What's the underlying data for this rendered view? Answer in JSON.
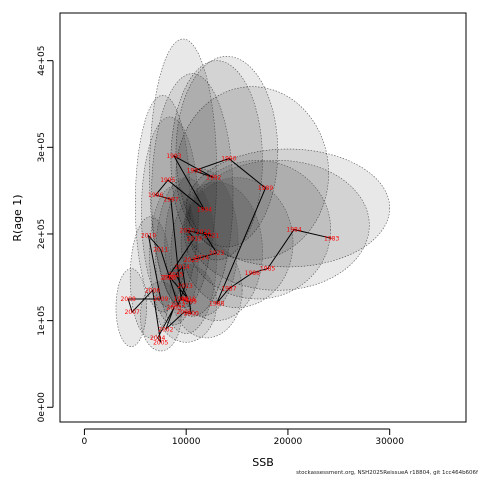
{
  "footer_text": "stockassessment.org, NSH2025ReissueA r18804, git 1cc464b606f",
  "chart_data": {
    "type": "scatter",
    "xlabel": "SSB",
    "ylabel": "R(age 1)",
    "xlim": [
      -2400,
      37500
    ],
    "ylim": [
      -17000,
      455000
    ],
    "x_ticks": [
      0,
      10000,
      20000,
      30000
    ],
    "y_ticks": [
      0,
      100000,
      200000,
      300000,
      400000
    ],
    "x_tick_labels": [
      "0",
      "10000",
      "20000",
      "30000"
    ],
    "y_tick_labels": [
      "0e+00",
      "1e+05",
      "2e+05",
      "3e+05",
      "4e+05"
    ],
    "grid": false,
    "colors": {
      "label": "#ff0000",
      "path": "#000000",
      "ellipse_fill": "#000000",
      "ellipse_stroke": "#555555"
    },
    "points": [
      {
        "label": "1983",
        "x": 24300,
        "y": 195000
      },
      {
        "label": "1984",
        "x": 20600,
        "y": 205000
      },
      {
        "label": "1985",
        "x": 18000,
        "y": 160000
      },
      {
        "label": "1986",
        "x": 16500,
        "y": 155000
      },
      {
        "label": "1987",
        "x": 14200,
        "y": 137000
      },
      {
        "label": "1988",
        "x": 13000,
        "y": 120000
      },
      {
        "label": "1989",
        "x": 17800,
        "y": 253000
      },
      {
        "label": "1990",
        "x": 14200,
        "y": 287000
      },
      {
        "label": "1991",
        "x": 10800,
        "y": 273000
      },
      {
        "label": "1992",
        "x": 12700,
        "y": 265000
      },
      {
        "label": "1993",
        "x": 8800,
        "y": 290000
      },
      {
        "label": "1994",
        "x": 11800,
        "y": 228000
      },
      {
        "label": "1995",
        "x": 8200,
        "y": 262000
      },
      {
        "label": "1996",
        "x": 7000,
        "y": 245000
      },
      {
        "label": "1997",
        "x": 8500,
        "y": 240000
      },
      {
        "label": "1998",
        "x": 9500,
        "y": 125000
      },
      {
        "label": "1999",
        "x": 10300,
        "y": 122000
      },
      {
        "label": "2000",
        "x": 10500,
        "y": 108000
      },
      {
        "label": "2001",
        "x": 9800,
        "y": 110000
      },
      {
        "label": "2002",
        "x": 8000,
        "y": 90000
      },
      {
        "label": "2003",
        "x": 8800,
        "y": 115000
      },
      {
        "label": "2004",
        "x": 7200,
        "y": 80000
      },
      {
        "label": "2005",
        "x": 7500,
        "y": 75000
      },
      {
        "label": "2006",
        "x": 6700,
        "y": 135000
      },
      {
        "label": "2007",
        "x": 4700,
        "y": 110000
      },
      {
        "label": "2008",
        "x": 4300,
        "y": 125000
      },
      {
        "label": "2009",
        "x": 7500,
        "y": 125000
      },
      {
        "label": "2010",
        "x": 6300,
        "y": 198000
      },
      {
        "label": "2011",
        "x": 7500,
        "y": 182000
      },
      {
        "label": "2012",
        "x": 9200,
        "y": 118000
      },
      {
        "label": "2013",
        "x": 9900,
        "y": 140000
      },
      {
        "label": "2014",
        "x": 9600,
        "y": 162000
      },
      {
        "label": "2015",
        "x": 9000,
        "y": 153000
      },
      {
        "label": "2016",
        "x": 10200,
        "y": 125000
      },
      {
        "label": "2017",
        "x": 8400,
        "y": 150000
      },
      {
        "label": "2018",
        "x": 8200,
        "y": 150000
      },
      {
        "label": "2019",
        "x": 10800,
        "y": 195000
      },
      {
        "label": "2020",
        "x": 10100,
        "y": 204000
      },
      {
        "label": "2021",
        "x": 12500,
        "y": 198000
      },
      {
        "label": "2022",
        "x": 11700,
        "y": 202000
      },
      {
        "label": "2023",
        "x": 13000,
        "y": 178000
      },
      {
        "label": "2024",
        "x": 11500,
        "y": 173000
      },
      {
        "label": "2025",
        "x": 10500,
        "y": 170000
      }
    ],
    "ellipses": [
      {
        "x": 20000,
        "y": 230000,
        "rx": 10000,
        "ry": 68000
      },
      {
        "x": 16500,
        "y": 270000,
        "rx": 7500,
        "ry": 100000
      },
      {
        "x": 14000,
        "y": 295000,
        "rx": 5000,
        "ry": 110000
      },
      {
        "x": 13000,
        "y": 285000,
        "rx": 4500,
        "ry": 115000
      },
      {
        "x": 9700,
        "y": 270000,
        "rx": 3300,
        "ry": 155000
      },
      {
        "x": 10600,
        "y": 245000,
        "rx": 4000,
        "ry": 140000
      },
      {
        "x": 7700,
        "y": 235000,
        "rx": 2700,
        "ry": 125000
      },
      {
        "x": 8400,
        "y": 225000,
        "rx": 2800,
        "ry": 110000
      },
      {
        "x": 19000,
        "y": 210000,
        "rx": 9000,
        "ry": 75000
      },
      {
        "x": 17000,
        "y": 205000,
        "rx": 7200,
        "ry": 80000
      },
      {
        "x": 15000,
        "y": 190000,
        "rx": 5500,
        "ry": 75000
      },
      {
        "x": 13000,
        "y": 180000,
        "rx": 4500,
        "ry": 80000
      },
      {
        "x": 11500,
        "y": 190000,
        "rx": 3600,
        "ry": 85000
      },
      {
        "x": 10000,
        "y": 175000,
        "rx": 3000,
        "ry": 90000
      },
      {
        "x": 8800,
        "y": 175000,
        "rx": 2400,
        "ry": 80000
      },
      {
        "x": 6500,
        "y": 150000,
        "rx": 2000,
        "ry": 70000
      },
      {
        "x": 4600,
        "y": 115000,
        "rx": 1500,
        "ry": 45000
      },
      {
        "x": 7500,
        "y": 105000,
        "rx": 2000,
        "ry": 40000
      },
      {
        "x": 10000,
        "y": 120000,
        "rx": 3000,
        "ry": 45000
      },
      {
        "x": 12000,
        "y": 135000,
        "rx": 3500,
        "ry": 55000
      }
    ]
  }
}
